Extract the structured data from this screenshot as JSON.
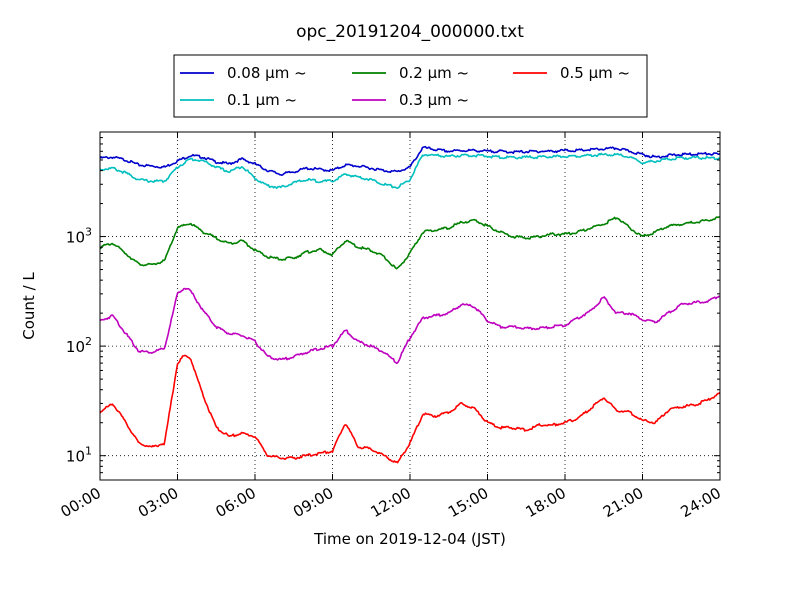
{
  "chart_data": {
    "type": "line",
    "title": "opc_20191204_000000.txt",
    "xlabel": "Time on 2019-12-04 (JST)",
    "ylabel": "Count / L",
    "x_unit": "hours",
    "xlim": [
      0,
      24
    ],
    "ylim": [
      6,
      9000
    ],
    "yscale": "log",
    "grid": true,
    "legend_position": "top",
    "x_ticks": [
      0,
      3,
      6,
      9,
      12,
      15,
      18,
      21,
      24
    ],
    "x_tick_labels": [
      "00:00",
      "03:00",
      "06:00",
      "09:00",
      "12:00",
      "15:00",
      "18:00",
      "21:00",
      "24:00"
    ],
    "y_ticks": [
      10,
      100,
      1000
    ],
    "y_tick_labels": [
      {
        "base": "10",
        "exp": "1"
      },
      {
        "base": "10",
        "exp": "2"
      },
      {
        "base": "10",
        "exp": "3"
      }
    ],
    "series": [
      {
        "name": "0.08 μm ~",
        "color": "#0000cc",
        "x": [
          0,
          0.5,
          1,
          1.5,
          2,
          2.5,
          3,
          3.5,
          4,
          4.5,
          5,
          5.5,
          6,
          6.5,
          7,
          7.5,
          8,
          8.5,
          9,
          9.5,
          10,
          10.5,
          11,
          11.5,
          12,
          12.5,
          13,
          13.5,
          14,
          14.5,
          15,
          15.5,
          16,
          16.5,
          17,
          17.5,
          18,
          18.5,
          19,
          19.5,
          20,
          20.5,
          21,
          21.5,
          22,
          22.5,
          23,
          23.5,
          24
        ],
        "y": [
          5200,
          5300,
          5000,
          4500,
          4400,
          4300,
          4900,
          5500,
          5300,
          4800,
          4600,
          5100,
          4600,
          4000,
          3700,
          3900,
          4200,
          4100,
          4000,
          4500,
          4400,
          4200,
          4000,
          3900,
          4300,
          6500,
          6200,
          6000,
          6100,
          6100,
          6000,
          6000,
          5900,
          5950,
          6000,
          6000,
          6100,
          6100,
          6200,
          6300,
          6400,
          6000,
          5600,
          5300,
          5500,
          5600,
          5650,
          5700,
          5600
        ]
      },
      {
        "name": "0.1 μm ~",
        "color": "#00bfbf",
        "x": [
          0,
          0.5,
          1,
          1.5,
          2,
          2.5,
          3,
          3.5,
          4,
          4.5,
          5,
          5.5,
          6,
          6.5,
          7,
          7.5,
          8,
          8.5,
          9,
          9.5,
          10,
          10.5,
          11,
          11.5,
          12,
          12.5,
          13,
          13.5,
          14,
          14.5,
          15,
          15.5,
          16,
          16.5,
          17,
          17.5,
          18,
          18.5,
          19,
          19.5,
          20,
          20.5,
          21,
          21.5,
          22,
          22.5,
          23,
          23.5,
          24
        ],
        "y": [
          4100,
          4200,
          3800,
          3300,
          3200,
          3200,
          4300,
          5100,
          4900,
          4300,
          3900,
          4400,
          3400,
          2900,
          2800,
          3100,
          3300,
          3200,
          3200,
          3700,
          3500,
          3300,
          3000,
          2800,
          3300,
          5600,
          5500,
          5400,
          5500,
          5500,
          5400,
          5300,
          5250,
          5300,
          5300,
          5350,
          5400,
          5450,
          5500,
          5600,
          5600,
          5300,
          4700,
          4900,
          5100,
          5200,
          5250,
          5200,
          5200
        ]
      },
      {
        "name": "0.2 μm ~",
        "color": "#008000",
        "x": [
          0,
          0.5,
          1,
          1.5,
          2,
          2.5,
          3,
          3.5,
          4,
          4.5,
          5,
          5.5,
          6,
          6.5,
          7,
          7.5,
          8,
          8.5,
          9,
          9.5,
          10,
          10.5,
          11,
          11.5,
          12,
          12.5,
          13,
          13.5,
          14,
          14.5,
          15,
          15.5,
          16,
          16.5,
          17,
          17.5,
          18,
          18.5,
          19,
          19.5,
          20,
          20.5,
          21,
          21.5,
          22,
          22.5,
          23,
          23.5,
          24
        ],
        "y": [
          800,
          870,
          700,
          560,
          550,
          600,
          1200,
          1320,
          1100,
          970,
          860,
          920,
          750,
          650,
          620,
          640,
          720,
          760,
          680,
          920,
          800,
          750,
          650,
          500,
          700,
          1100,
          1150,
          1200,
          1350,
          1400,
          1250,
          1100,
          1000,
          970,
          1000,
          1050,
          1050,
          1100,
          1200,
          1300,
          1500,
          1200,
          1000,
          1100,
          1250,
          1300,
          1350,
          1400,
          1500
        ]
      },
      {
        "name": "0.3 μm ~",
        "color": "#bf00bf",
        "x": [
          0,
          0.5,
          1,
          1.5,
          2,
          2.5,
          3,
          3.25,
          3.5,
          4,
          4.5,
          5,
          5.5,
          6,
          6.5,
          7,
          7.5,
          8,
          8.5,
          9,
          9.5,
          10,
          10.5,
          11,
          11.5,
          12,
          12.5,
          13,
          13.5,
          14,
          14.5,
          15,
          15.5,
          16,
          16.5,
          17,
          17.5,
          18,
          18.5,
          19,
          19.5,
          20,
          20.5,
          21,
          21.5,
          22,
          22.5,
          23,
          23.5,
          24
        ],
        "y": [
          170,
          190,
          130,
          90,
          88,
          95,
          300,
          340,
          320,
          210,
          150,
          130,
          125,
          110,
          80,
          75,
          80,
          88,
          95,
          100,
          140,
          110,
          100,
          88,
          70,
          120,
          180,
          190,
          200,
          240,
          230,
          170,
          150,
          150,
          145,
          145,
          150,
          155,
          180,
          210,
          280,
          200,
          200,
          175,
          165,
          200,
          240,
          250,
          255,
          290
        ]
      },
      {
        "name": "0.5 μm ~",
        "color": "#ff0000",
        "x": [
          0,
          0.5,
          1,
          1.5,
          2,
          2.5,
          3,
          3.25,
          3.5,
          4,
          4.5,
          5,
          5.5,
          6,
          6.5,
          7,
          7.5,
          8,
          8.5,
          9,
          9.5,
          10,
          10.5,
          11,
          11.5,
          12,
          12.5,
          13,
          13.5,
          14,
          14.5,
          15,
          15.5,
          16,
          16.5,
          17,
          17.5,
          18,
          18.5,
          19,
          19.5,
          20,
          20.5,
          21,
          21.5,
          22,
          22.5,
          23,
          23.5,
          24
        ],
        "y": [
          25,
          30,
          20,
          13,
          12,
          13,
          70,
          82,
          78,
          35,
          18,
          15,
          16,
          15,
          10,
          9.5,
          9.5,
          10,
          10.5,
          11,
          20,
          12,
          11.5,
          10,
          8.5,
          13,
          24,
          23,
          25,
          30,
          27,
          20,
          18,
          18,
          17,
          19,
          19,
          20,
          22,
          27,
          34,
          26,
          25,
          21,
          20,
          26,
          28,
          29,
          32,
          37
        ]
      }
    ]
  }
}
